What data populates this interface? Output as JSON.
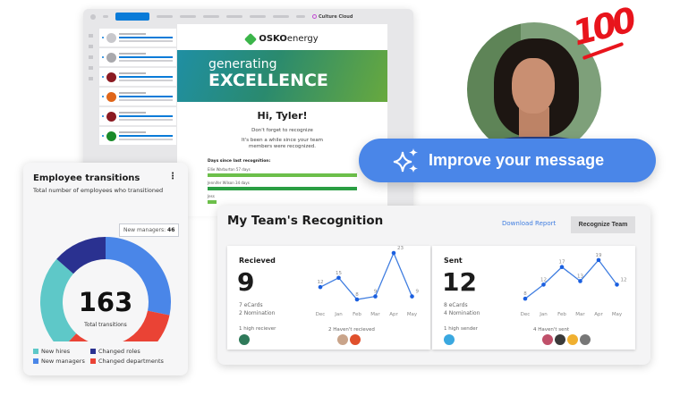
{
  "app": {
    "brand": "Culture Cloud",
    "email": {
      "logo_bold": "OSKO",
      "logo_rest": "energy",
      "banner_line1": "generating",
      "banner_line2": "EXCELLENCE",
      "greeting": "Hi, Tyler!",
      "reminder": "Don't forget to recognize",
      "message": "It's been a while since your team members were recognized.",
      "days_heading": "Days since last recognition:",
      "days_rows": [
        {
          "name": "Ellie Warburton 57 days",
          "fraction": 1.0,
          "color": "#6cbf4a"
        },
        {
          "name": "Jennifer Wilson 34 days",
          "fraction": 1.0,
          "color": "#2a9e43"
        },
        {
          "name": "Jess",
          "fraction": 0.06,
          "color": "#6cbf4a"
        }
      ]
    },
    "list_avatar_colors": [
      "#c8c8cc",
      "#a9a9ad",
      "#8b1a22",
      "#e0661a",
      "#8b1a22",
      "#1a8a2a"
    ]
  },
  "badge_emoji": "100",
  "improve_button": {
    "label": "Improve your message",
    "icon": "sparkles-icon"
  },
  "employee_transitions": {
    "title": "Employee transitions",
    "subtitle": "Total number of employees who transitioned",
    "total": "163",
    "total_label": "Total transitions",
    "tooltip_label": "New managers:",
    "tooltip_value": "46",
    "legend": [
      "New hires",
      "Changed roles",
      "New managers",
      "Changed departments"
    ]
  },
  "chart_data": [
    {
      "type": "pie",
      "title": "Employee transitions",
      "categories": [
        "New managers",
        "Changed departments",
        "New hires",
        "Changed roles"
      ],
      "values": [
        46,
        55,
        40,
        22
      ],
      "colors": [
        "#4a86e8",
        "#ea4335",
        "#5ec8c8",
        "#2a3190"
      ]
    },
    {
      "type": "line",
      "title": "Recieved",
      "categories": [
        "Dec",
        "Jan",
        "Feb",
        "Mar",
        "Apr",
        "May"
      ],
      "values": [
        12,
        15,
        8,
        9,
        23,
        9
      ]
    },
    {
      "type": "line",
      "title": "Sent",
      "categories": [
        "Dec",
        "Jan",
        "Feb",
        "Mar",
        "Apr",
        "May"
      ],
      "values": [
        8,
        12,
        17,
        13,
        19,
        12
      ]
    }
  ],
  "recognition": {
    "title": "My Team's Recognition",
    "download_label": "Download Report",
    "recognize_label": "Recognize Team",
    "received": {
      "heading": "Recieved",
      "total": "9",
      "ecards": "7 eCards",
      "nominations": "2 Nomination",
      "high_label": "1 high reciever",
      "none_label": "2 Haven't recieved",
      "high_avatars": [
        "#2f7a5a"
      ],
      "none_avatars": [
        "#c9a48a",
        "#e0502c"
      ]
    },
    "sent": {
      "heading": "Sent",
      "total": "12",
      "ecards": "8 eCards",
      "nominations": "4 Nomination",
      "high_label": "1 high sender",
      "none_label": "4 Haven't sent",
      "high_avatars": [
        "#3aa8e0"
      ],
      "none_avatars": [
        "#c0506a",
        "#3a3a3a",
        "#f0b030",
        "#777"
      ]
    },
    "accent": "#1a5fe0"
  }
}
